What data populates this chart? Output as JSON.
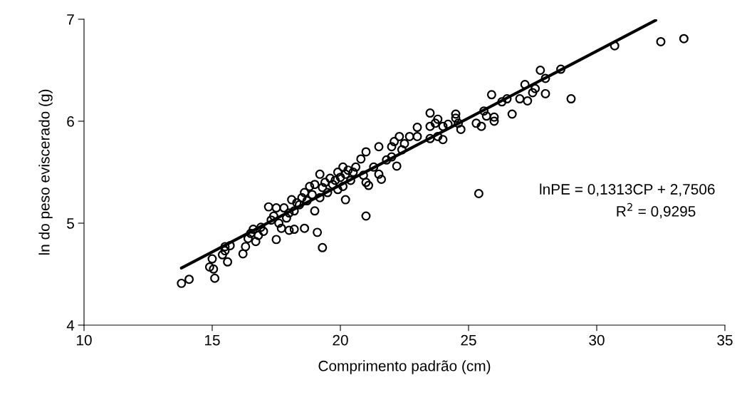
{
  "chart_data": {
    "type": "scatter",
    "xlabel": "Comprimento padrão (cm)",
    "ylabel": "ln do peso eviscerado (g)",
    "xlim": [
      10,
      35
    ],
    "xticks": [
      10,
      15,
      20,
      25,
      30,
      35
    ],
    "ylim": [
      4,
      7
    ],
    "yticks": [
      4,
      5,
      6,
      7
    ],
    "grid": false,
    "legend": false,
    "marker": "circle",
    "annotations": [
      "lnPE = 0,1313CP + 2,7506",
      "R$^{2}$ = 0,9295"
    ],
    "series": [
      {
        "color": "#000000",
        "x": [
          13.8,
          14.1,
          14.9,
          15.0,
          15.05,
          15.1,
          15.4,
          15.5,
          15.5,
          15.6,
          15.7,
          16.2,
          16.3,
          16.4,
          16.5,
          16.6,
          16.7,
          16.8,
          16.9,
          17.0,
          17.2,
          17.3,
          17.4,
          17.5,
          17.5,
          17.6,
          17.7,
          17.8,
          17.9,
          18.0,
          18.0,
          18.1,
          18.2,
          18.2,
          18.3,
          18.4,
          18.5,
          18.6,
          18.6,
          18.7,
          18.8,
          18.9,
          19.0,
          19.0,
          19.1,
          19.2,
          19.2,
          19.3,
          19.3,
          19.4,
          19.5,
          19.6,
          19.7,
          19.8,
          19.9,
          19.9,
          20.0,
          20.1,
          20.1,
          20.2,
          20.2,
          20.3,
          20.4,
          20.5,
          20.6,
          20.8,
          20.9,
          21.0,
          21.0,
          21.0,
          21.1,
          21.3,
          21.5,
          21.5,
          21.6,
          21.8,
          22.0,
          22.0,
          22.1,
          22.2,
          22.3,
          22.4,
          22.5,
          22.7,
          23.0,
          23.0,
          23.5,
          23.5,
          23.5,
          23.7,
          23.8,
          23.8,
          24.0,
          24.0,
          24.2,
          24.5,
          24.5,
          24.6,
          24.7,
          25.3,
          25.4,
          25.5,
          25.6,
          25.7,
          25.9,
          26.0,
          26.0,
          26.3,
          26.5,
          26.7,
          27.0,
          27.2,
          27.3,
          27.5,
          27.6,
          27.8,
          28.0,
          28.0,
          28.6,
          29.0,
          30.7,
          32.5,
          33.4
        ],
        "values": [
          4.41,
          4.45,
          4.57,
          4.65,
          4.55,
          4.46,
          4.69,
          4.73,
          4.77,
          4.62,
          4.78,
          4.7,
          4.77,
          4.85,
          4.9,
          4.94,
          4.82,
          4.88,
          4.96,
          4.92,
          5.16,
          5.03,
          5.07,
          4.84,
          5.15,
          5.0,
          4.95,
          5.15,
          5.05,
          5.1,
          4.93,
          5.23,
          4.94,
          5.12,
          5.2,
          5.18,
          5.25,
          4.95,
          5.3,
          5.22,
          5.36,
          5.28,
          5.12,
          5.38,
          4.91,
          5.48,
          5.25,
          4.76,
          5.35,
          5.4,
          5.3,
          5.44,
          5.38,
          5.42,
          5.33,
          5.5,
          5.45,
          5.36,
          5.55,
          5.23,
          5.48,
          5.52,
          5.42,
          5.5,
          5.55,
          5.63,
          5.47,
          5.7,
          5.07,
          5.4,
          5.37,
          5.55,
          5.75,
          5.48,
          5.43,
          5.62,
          5.75,
          5.65,
          5.8,
          5.56,
          5.85,
          5.72,
          5.78,
          5.85,
          5.85,
          5.94,
          6.08,
          5.95,
          5.83,
          5.98,
          6.02,
          5.85,
          5.95,
          5.82,
          5.97,
          6.07,
          6.03,
          5.98,
          5.92,
          5.98,
          5.29,
          5.95,
          6.1,
          6.05,
          6.26,
          6.04,
          6.0,
          6.19,
          6.22,
          6.07,
          6.22,
          6.36,
          6.2,
          6.28,
          6.32,
          6.5,
          6.27,
          6.42,
          6.51,
          6.22,
          6.74,
          6.78,
          6.81
        ]
      },
      {
        "type": "line",
        "marker": "none",
        "color": "#000000",
        "x": [
          13.8,
          32.3
        ],
        "values": [
          4.56,
          6.99
        ]
      }
    ]
  }
}
